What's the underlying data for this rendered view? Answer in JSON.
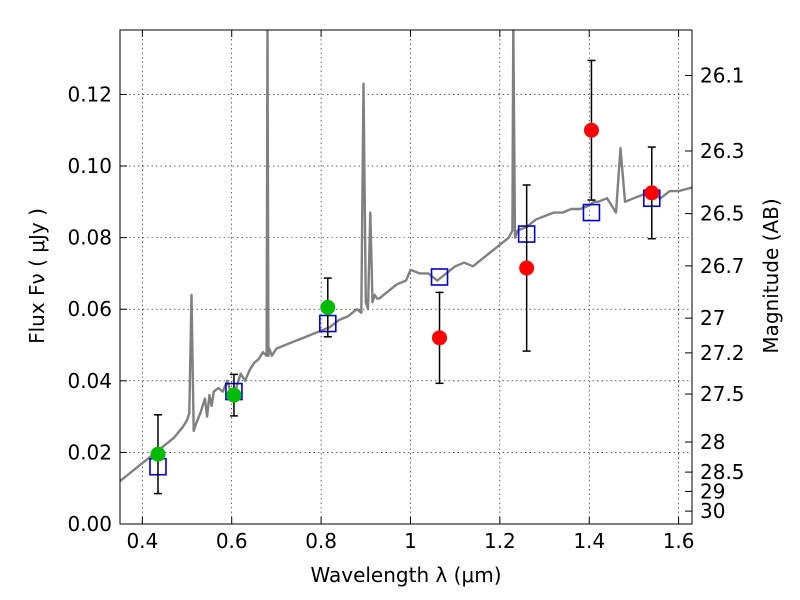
{
  "chart_data": {
    "type": "scatter",
    "xlabel": "Wavelength  λ (μm)",
    "ylabel": "Flux  Fν  ( μJy )",
    "y2label": "Magnitude (AB)",
    "xlim": [
      0.35,
      1.63
    ],
    "ylim": [
      0.0,
      0.138
    ],
    "grid": true,
    "x_ticks": [
      0.4,
      0.6,
      0.8,
      1.0,
      1.2,
      1.4,
      1.6
    ],
    "x_tick_labels": [
      "0.4",
      "0.6",
      "0.8",
      "1",
      "1.2",
      "1.4",
      "1.6"
    ],
    "y_ticks": [
      0.0,
      0.02,
      0.04,
      0.06,
      0.08,
      0.1,
      0.12
    ],
    "y_tick_labels": [
      "0.00",
      "0.02",
      "0.04",
      "0.06",
      "0.08",
      "0.10",
      "0.12"
    ],
    "y2_ticks": [
      {
        "label": "26.1",
        "flux": 0.1253
      },
      {
        "label": "26.3",
        "flux": 0.1042
      },
      {
        "label": "26.5",
        "flux": 0.0867
      },
      {
        "label": "26.7",
        "flux": 0.0721
      },
      {
        "label": "27",
        "flux": 0.0575
      },
      {
        "label": "27.2",
        "flux": 0.0478
      },
      {
        "label": "27.5",
        "flux": 0.0363
      },
      {
        "label": "28",
        "flux": 0.0229
      },
      {
        "label": "28.5",
        "flux": 0.0145
      },
      {
        "label": "29",
        "flux": 0.0091
      },
      {
        "label": "30",
        "flux": 0.0036
      }
    ],
    "series": [
      {
        "kind": "line",
        "color": "#808080",
        "x": [
          0.35,
          0.37,
          0.39,
          0.41,
          0.43,
          0.45,
          0.47,
          0.49,
          0.5,
          0.505,
          0.51,
          0.515,
          0.52,
          0.53,
          0.54,
          0.545,
          0.55,
          0.555,
          0.56,
          0.57,
          0.58,
          0.59,
          0.6,
          0.61,
          0.62,
          0.63,
          0.64,
          0.65,
          0.66,
          0.67,
          0.678,
          0.68,
          0.682,
          0.684,
          0.69,
          0.7,
          0.72,
          0.74,
          0.76,
          0.78,
          0.8,
          0.82,
          0.84,
          0.86,
          0.88,
          0.89,
          0.895,
          0.9,
          0.905,
          0.91,
          0.915,
          0.92,
          0.925,
          0.93,
          0.95,
          0.97,
          0.99,
          1.0,
          1.02,
          1.04,
          1.06,
          1.08,
          1.1,
          1.12,
          1.14,
          1.16,
          1.18,
          1.2,
          1.22,
          1.228,
          1.23,
          1.234,
          1.24,
          1.26,
          1.28,
          1.3,
          1.32,
          1.34,
          1.36,
          1.38,
          1.4,
          1.41,
          1.42,
          1.44,
          1.46,
          1.47,
          1.48,
          1.5,
          1.52,
          1.54,
          1.56,
          1.58,
          1.6,
          1.63
        ],
        "y": [
          0.012,
          0.014,
          0.016,
          0.018,
          0.02,
          0.022,
          0.024,
          0.027,
          0.029,
          0.031,
          0.064,
          0.026,
          0.028,
          0.031,
          0.035,
          0.03,
          0.036,
          0.033,
          0.037,
          0.038,
          0.037,
          0.04,
          0.036,
          0.038,
          0.042,
          0.04,
          0.043,
          0.045,
          0.046,
          0.048,
          0.047,
          0.14,
          0.047,
          0.049,
          0.047,
          0.049,
          0.05,
          0.051,
          0.052,
          0.053,
          0.054,
          0.055,
          0.057,
          0.058,
          0.06,
          0.059,
          0.123,
          0.062,
          0.06,
          0.087,
          0.062,
          0.064,
          0.063,
          0.063,
          0.065,
          0.067,
          0.068,
          0.071,
          0.07,
          0.07,
          0.068,
          0.07,
          0.072,
          0.073,
          0.072,
          0.074,
          0.076,
          0.078,
          0.08,
          0.082,
          0.14,
          0.08,
          0.082,
          0.083,
          0.085,
          0.086,
          0.087,
          0.087,
          0.088,
          0.088,
          0.089,
          0.09,
          0.09,
          0.091,
          0.087,
          0.105,
          0.09,
          0.091,
          0.092,
          0.092,
          0.091,
          0.093,
          0.093,
          0.094
        ]
      },
      {
        "kind": "squares",
        "color": "#0000cc",
        "x": [
          0.435,
          0.605,
          0.815,
          1.065,
          1.26,
          1.405,
          1.54
        ],
        "y": [
          0.016,
          0.037,
          0.056,
          0.069,
          0.081,
          0.087,
          0.091
        ]
      },
      {
        "kind": "points",
        "color": "#00bb00",
        "x": [
          0.435,
          0.605,
          0.815
        ],
        "y": [
          0.0195,
          0.036,
          0.0605
        ],
        "yerr": [
          0.011,
          0.0058,
          0.0082
        ]
      },
      {
        "kind": "points",
        "color": "#ff0000",
        "x": [
          1.065,
          1.26,
          1.405,
          1.54
        ],
        "y": [
          0.052,
          0.0715,
          0.11,
          0.0925
        ],
        "yerr": [
          0.0127,
          0.0232,
          0.0195,
          0.0128
        ]
      }
    ]
  }
}
